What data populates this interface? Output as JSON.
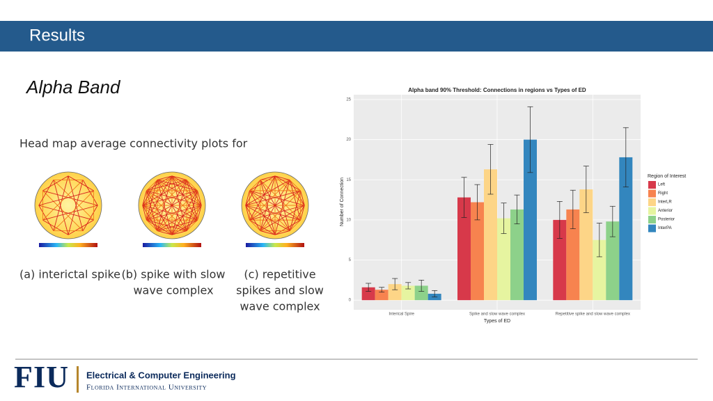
{
  "header": {
    "title": "Results"
  },
  "subtitle": "Alpha Band",
  "intro": "Head map average connectivity plots for",
  "panels": [
    {
      "lines": [
        "(a) interictal spike"
      ]
    },
    {
      "lines": [
        "(b) spike with slow",
        "wave complex"
      ]
    },
    {
      "lines": [
        "(c) repetitive",
        "spikes and slow",
        "wave complex"
      ]
    }
  ],
  "footer": {
    "logo": "FIU",
    "department": "Electrical & Computer Engineering",
    "university": "Florida International University"
  },
  "chart_data": {
    "type": "bar",
    "title": "Alpha band 90% Threshold: Connections in regions vs Types of ED",
    "x_label": "Types of ED",
    "y_label": "Number of Connection",
    "legend_title": "Region of Interest",
    "categories": [
      "Interical Spire",
      "Spike and slow wave complex",
      "Repetitive spike and slow wave complex"
    ],
    "series": [
      {
        "name": "Left",
        "color": "#d7394a",
        "values": [
          1.6,
          12.8,
          10.0
        ],
        "errors": [
          0.5,
          2.5,
          2.3
        ]
      },
      {
        "name": "Right",
        "color": "#f7834f",
        "values": [
          1.3,
          12.2,
          11.3
        ],
        "errors": [
          0.3,
          2.2,
          2.4
        ]
      },
      {
        "name": "InterLR",
        "color": "#fdd587",
        "values": [
          2.0,
          16.3,
          13.8
        ],
        "errors": [
          0.7,
          3.1,
          2.9
        ]
      },
      {
        "name": "Anterior",
        "color": "#e6f4a0",
        "values": [
          1.8,
          10.2,
          7.5
        ],
        "errors": [
          0.4,
          1.9,
          2.1
        ]
      },
      {
        "name": "Posterior",
        "color": "#8dd18a",
        "values": [
          1.8,
          11.3,
          9.8
        ],
        "errors": [
          0.7,
          1.8,
          1.9
        ]
      },
      {
        "name": "InterPA",
        "color": "#3386be",
        "values": [
          0.8,
          20.0,
          17.8
        ],
        "errors": [
          0.4,
          4.1,
          3.7
        ]
      }
    ],
    "ylim": [
      -1.2,
      25.6
    ],
    "yticks": [
      0,
      5,
      10,
      15,
      20,
      25
    ],
    "grid": true,
    "legend": "right"
  }
}
